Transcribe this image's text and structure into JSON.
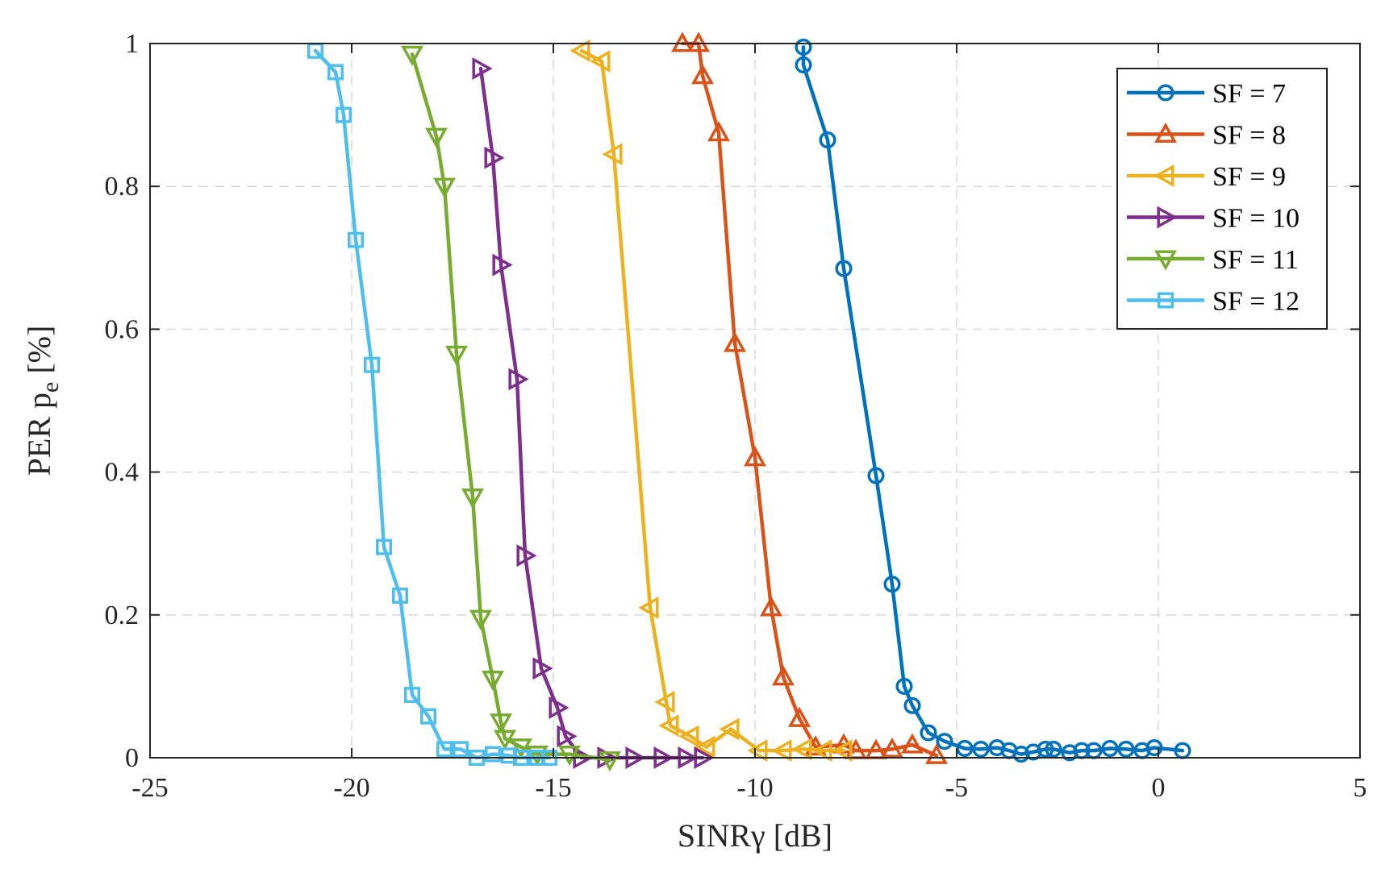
{
  "chart_data": {
    "type": "line",
    "title": "",
    "xlabel": "SINRγ [dB]",
    "ylabel_main": "PER p",
    "ylabel_sub": "e",
    "ylabel_tail": " [%]",
    "xlim": [
      -25,
      5
    ],
    "ylim": [
      0,
      1
    ],
    "xticks": [
      -25,
      -20,
      -15,
      -10,
      -5,
      0,
      5
    ],
    "xtick_labels": [
      "-25",
      "-20",
      "-15",
      "-10",
      "-5",
      "0",
      "5"
    ],
    "yticks": [
      0,
      0.2,
      0.4,
      0.6,
      0.8,
      1
    ],
    "ytick_labels": [
      "0",
      "0.2",
      "0.4",
      "0.6",
      "0.8",
      "1"
    ],
    "grid": true,
    "legend_position": "top-right",
    "series": [
      {
        "name": "SF = 7",
        "color": "#0072BD",
        "marker": "circle",
        "x": [
          -8.8,
          -8.8,
          -8.2,
          -7.8,
          -7.0,
          -6.6,
          -6.3,
          -6.1,
          -5.7,
          -5.3,
          -4.8,
          -4.4,
          -4.0,
          -3.7,
          -3.4,
          -3.1,
          -2.8,
          -2.6,
          -2.2,
          -1.9,
          -1.6,
          -1.2,
          -0.8,
          -0.4,
          -0.1,
          0.6
        ],
        "y": [
          0.995,
          0.97,
          0.865,
          0.685,
          0.395,
          0.243,
          0.1,
          0.073,
          0.035,
          0.023,
          0.013,
          0.012,
          0.014,
          0.01,
          0.005,
          0.008,
          0.012,
          0.012,
          0.007,
          0.01,
          0.01,
          0.013,
          0.012,
          0.01,
          0.014,
          0.01
        ]
      },
      {
        "name": "SF = 8",
        "color": "#D95319",
        "marker": "triangle-up",
        "x": [
          -11.8,
          -11.4,
          -11.3,
          -10.9,
          -10.5,
          -10.0,
          -9.6,
          -9.3,
          -8.9,
          -8.5,
          -7.8,
          -7.5,
          -7.0,
          -6.6,
          -6.1,
          -5.5
        ],
        "y": [
          1.0,
          1.0,
          0.955,
          0.875,
          0.58,
          0.42,
          0.21,
          0.113,
          0.055,
          0.015,
          0.018,
          0.01,
          0.01,
          0.012,
          0.018,
          0.003
        ]
      },
      {
        "name": "SF = 9",
        "color": "#EDB120",
        "marker": "triangle-left",
        "x": [
          -14.3,
          -13.8,
          -13.5,
          -12.6,
          -12.2,
          -12.1,
          -11.6,
          -11.2,
          -10.6,
          -9.9,
          -9.3,
          -8.8,
          -8.3,
          -7.8
        ],
        "y": [
          0.99,
          0.975,
          0.845,
          0.21,
          0.078,
          0.045,
          0.03,
          0.015,
          0.04,
          0.01,
          0.01,
          0.012,
          0.01,
          0.01
        ]
      },
      {
        "name": "SF = 10",
        "color": "#7E2F8E",
        "marker": "triangle-right",
        "x": [
          -16.8,
          -16.5,
          -16.3,
          -15.9,
          -15.7,
          -15.3,
          -14.9,
          -14.7,
          -14.3,
          -13.7,
          -13.0,
          -12.3,
          -11.7,
          -11.3
        ],
        "y": [
          0.965,
          0.84,
          0.69,
          0.53,
          0.283,
          0.125,
          0.07,
          0.03,
          0.0,
          0.0,
          0.0,
          0.0,
          0.0,
          0.0
        ]
      },
      {
        "name": "SF = 11",
        "color": "#77AC30",
        "marker": "triangle-down",
        "x": [
          -18.5,
          -17.9,
          -17.7,
          -17.4,
          -17.0,
          -16.8,
          -16.5,
          -16.3,
          -16.2,
          -15.8,
          -15.4,
          -14.6,
          -13.6
        ],
        "y": [
          0.985,
          0.87,
          0.8,
          0.565,
          0.365,
          0.195,
          0.11,
          0.05,
          0.027,
          0.015,
          0.005,
          0.005,
          -0.003
        ]
      },
      {
        "name": "SF = 12",
        "color": "#4DBEEE",
        "marker": "square",
        "x": [
          -20.9,
          -20.4,
          -20.2,
          -19.9,
          -19.5,
          -19.2,
          -18.8,
          -18.5,
          -18.1,
          -17.7,
          -17.3,
          -16.9,
          -16.5,
          -16.1,
          -15.8,
          -15.4,
          -15.1
        ],
        "y": [
          0.99,
          0.96,
          0.9,
          0.725,
          0.55,
          0.295,
          0.227,
          0.088,
          0.058,
          0.012,
          0.012,
          0.0,
          0.005,
          0.003,
          0.0,
          0.0,
          0.0
        ]
      }
    ]
  }
}
